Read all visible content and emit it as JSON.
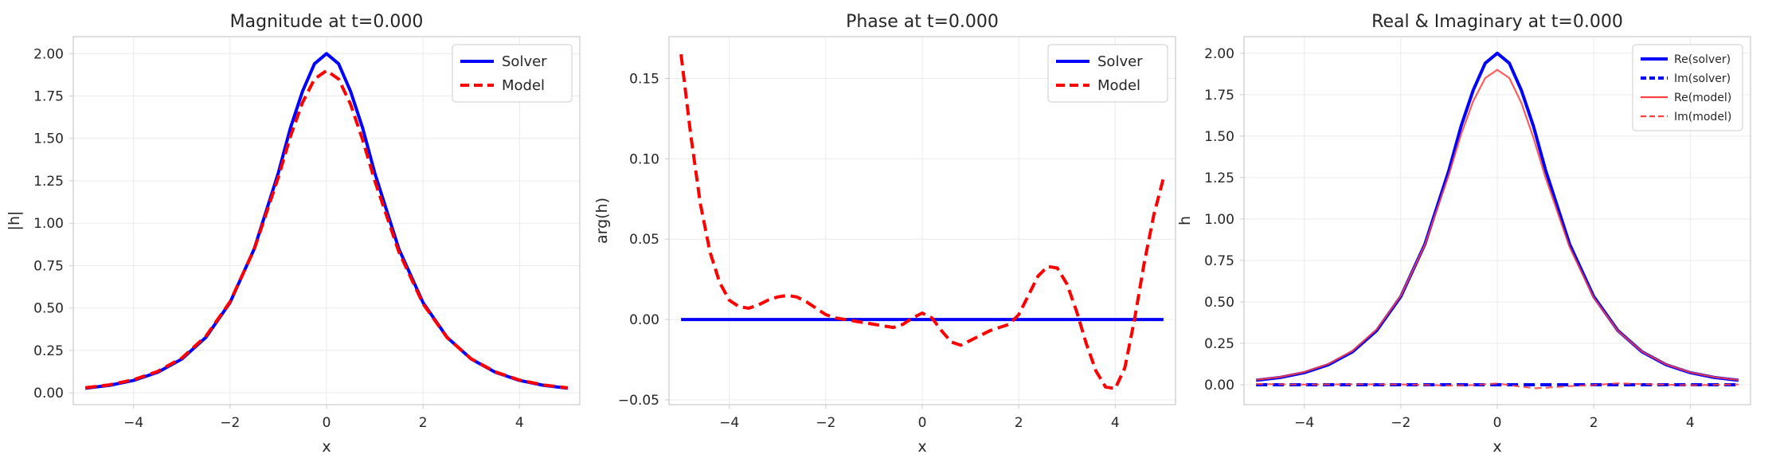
{
  "chart_data": [
    {
      "type": "line",
      "title": "Magnitude at t=0.000",
      "xlabel": "x",
      "ylabel": "|h|",
      "xlim": [
        -5.25,
        5.25
      ],
      "ylim": [
        -0.07,
        2.1
      ],
      "xticks": [
        -4,
        -2,
        0,
        2,
        4
      ],
      "xtick_labels": [
        "−4",
        "−2",
        "0",
        "2",
        "4"
      ],
      "yticks": [
        0.0,
        0.25,
        0.5,
        0.75,
        1.0,
        1.25,
        1.5,
        1.75,
        2.0
      ],
      "ytick_labels": [
        "0.00",
        "0.25",
        "0.50",
        "0.75",
        "1.00",
        "1.25",
        "1.50",
        "1.75",
        "2.00"
      ],
      "grid": true,
      "legend_position": "top-right",
      "series": [
        {
          "name": "Solver",
          "color": "#0000ff",
          "style": "solid",
          "x": [
            -5,
            -4.5,
            -4,
            -3.5,
            -3,
            -2.5,
            -2,
            -1.5,
            -1,
            -0.75,
            -0.5,
            -0.25,
            0,
            0.25,
            0.5,
            0.75,
            1,
            1.5,
            2,
            2.5,
            3,
            3.5,
            4,
            4.5,
            5
          ],
          "y": [
            0.027,
            0.044,
            0.073,
            0.121,
            0.199,
            0.327,
            0.532,
            0.848,
            1.296,
            1.56,
            1.776,
            1.94,
            2.0,
            1.94,
            1.776,
            1.56,
            1.296,
            0.848,
            0.532,
            0.327,
            0.199,
            0.121,
            0.073,
            0.044,
            0.027
          ]
        },
        {
          "name": "Model",
          "color": "#ff0000",
          "style": "dashed",
          "x": [
            -5,
            -4.5,
            -4,
            -3.5,
            -3,
            -2.5,
            -2,
            -1.5,
            -1,
            -0.75,
            -0.5,
            -0.25,
            0,
            0.25,
            0.5,
            0.75,
            1,
            1.5,
            2,
            2.5,
            3,
            3.5,
            4,
            4.5,
            5
          ],
          "y": [
            0.03,
            0.047,
            0.077,
            0.126,
            0.205,
            0.334,
            0.537,
            0.845,
            1.27,
            1.51,
            1.71,
            1.85,
            1.9,
            1.85,
            1.7,
            1.49,
            1.25,
            0.83,
            0.525,
            0.325,
            0.2,
            0.123,
            0.075,
            0.046,
            0.029
          ]
        }
      ]
    },
    {
      "type": "line",
      "title": "Phase at t=0.000",
      "xlabel": "x",
      "ylabel": "arg(h)",
      "xlim": [
        -5.25,
        5.25
      ],
      "ylim": [
        -0.053,
        0.176
      ],
      "xticks": [
        -4,
        -2,
        0,
        2,
        4
      ],
      "xtick_labels": [
        "−4",
        "−2",
        "0",
        "2",
        "4"
      ],
      "yticks": [
        -0.05,
        0.0,
        0.05,
        0.1,
        0.15
      ],
      "ytick_labels": [
        "−0.05",
        "0.00",
        "0.05",
        "0.10",
        "0.15"
      ],
      "grid": true,
      "legend_position": "top-right",
      "series": [
        {
          "name": "Solver",
          "color": "#0000ff",
          "style": "solid",
          "x": [
            -5,
            5
          ],
          "y": [
            0.0,
            0.0
          ]
        },
        {
          "name": "Model",
          "color": "#ff0000",
          "style": "dashed",
          "x": [
            -5,
            -4.8,
            -4.6,
            -4.4,
            -4.2,
            -4.0,
            -3.8,
            -3.6,
            -3.4,
            -3.2,
            -3.0,
            -2.8,
            -2.6,
            -2.4,
            -2.2,
            -2.0,
            -1.8,
            -1.6,
            -1.4,
            -1.2,
            -1.0,
            -0.8,
            -0.6,
            -0.4,
            -0.2,
            0.0,
            0.2,
            0.4,
            0.6,
            0.8,
            1.0,
            1.2,
            1.4,
            1.6,
            1.8,
            2.0,
            2.2,
            2.4,
            2.6,
            2.8,
            3.0,
            3.2,
            3.4,
            3.6,
            3.8,
            4.0,
            4.2,
            4.4,
            4.6,
            4.8,
            5.0
          ],
          "y": [
            0.165,
            0.115,
            0.072,
            0.042,
            0.023,
            0.012,
            0.008,
            0.007,
            0.009,
            0.012,
            0.014,
            0.015,
            0.014,
            0.011,
            0.007,
            0.003,
            0.001,
            0.0,
            -0.001,
            -0.002,
            -0.003,
            -0.004,
            -0.005,
            -0.003,
            0.001,
            0.004,
            0.001,
            -0.007,
            -0.014,
            -0.016,
            -0.013,
            -0.01,
            -0.007,
            -0.005,
            -0.003,
            0.003,
            0.015,
            0.027,
            0.033,
            0.032,
            0.022,
            0.005,
            -0.015,
            -0.032,
            -0.042,
            -0.043,
            -0.03,
            0.0,
            0.035,
            0.065,
            0.088
          ]
        }
      ]
    },
    {
      "type": "line",
      "title": "Real & Imaginary at t=0.000",
      "xlabel": "x",
      "ylabel": "h",
      "xlim": [
        -5.25,
        5.25
      ],
      "ylim": [
        -0.12,
        2.1
      ],
      "xticks": [
        -4,
        -2,
        0,
        2,
        4
      ],
      "xtick_labels": [
        "−4",
        "−2",
        "0",
        "2",
        "4"
      ],
      "yticks": [
        0.0,
        0.25,
        0.5,
        0.75,
        1.0,
        1.25,
        1.5,
        1.75,
        2.0
      ],
      "ytick_labels": [
        "0.00",
        "0.25",
        "0.50",
        "0.75",
        "1.00",
        "1.25",
        "1.50",
        "1.75",
        "2.00"
      ],
      "grid": true,
      "legend_position": "top-right",
      "series": [
        {
          "name": "Re(solver)",
          "color": "#0000ff",
          "style": "solid",
          "x": [
            -5,
            -4.5,
            -4,
            -3.5,
            -3,
            -2.5,
            -2,
            -1.5,
            -1,
            -0.75,
            -0.5,
            -0.25,
            0,
            0.25,
            0.5,
            0.75,
            1,
            1.5,
            2,
            2.5,
            3,
            3.5,
            4,
            4.5,
            5
          ],
          "y": [
            0.027,
            0.044,
            0.073,
            0.121,
            0.199,
            0.327,
            0.532,
            0.848,
            1.296,
            1.56,
            1.776,
            1.94,
            2.0,
            1.94,
            1.776,
            1.56,
            1.296,
            0.848,
            0.532,
            0.327,
            0.199,
            0.121,
            0.073,
            0.044,
            0.027
          ]
        },
        {
          "name": "Im(solver)",
          "color": "#0000ff",
          "style": "dashed",
          "x": [
            -5,
            5
          ],
          "y": [
            0.0,
            0.0
          ]
        },
        {
          "name": "Re(model)",
          "color": "#ff4040",
          "style": "solid-thin",
          "x": [
            -5,
            -4.5,
            -4,
            -3.5,
            -3,
            -2.5,
            -2,
            -1.5,
            -1,
            -0.75,
            -0.5,
            -0.25,
            0,
            0.25,
            0.5,
            0.75,
            1,
            1.5,
            2,
            2.5,
            3,
            3.5,
            4,
            4.5,
            5
          ],
          "y": [
            0.03,
            0.047,
            0.077,
            0.126,
            0.205,
            0.334,
            0.537,
            0.845,
            1.27,
            1.51,
            1.71,
            1.85,
            1.9,
            1.85,
            1.7,
            1.49,
            1.25,
            0.83,
            0.525,
            0.325,
            0.2,
            0.123,
            0.075,
            0.046,
            0.029
          ]
        },
        {
          "name": "Im(model)",
          "color": "#ff4040",
          "style": "dashed-thin",
          "x": [
            -5,
            -4,
            -3,
            -2,
            -1,
            -0.5,
            0,
            0.5,
            0.8,
            1.0,
            1.5,
            2,
            2.5,
            3,
            4,
            5
          ],
          "y": [
            0.005,
            0.001,
            0.003,
            0.002,
            -0.004,
            -0.002,
            0.008,
            -0.012,
            -0.021,
            -0.018,
            -0.008,
            -0.002,
            0.009,
            0.004,
            -0.003,
            0.002
          ]
        }
      ]
    }
  ]
}
